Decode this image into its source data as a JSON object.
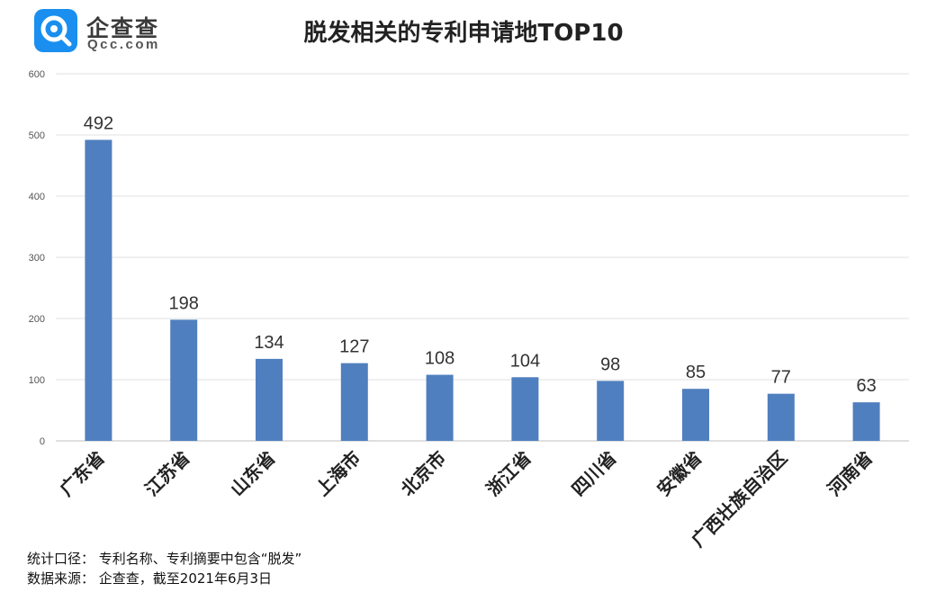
{
  "brand": {
    "name": "企查查",
    "domain": "Qcc.com",
    "color": "#1a8ff0"
  },
  "footnotes": {
    "scope": "统计口径： 专利名称、专利摘要中包含“脱发”",
    "source": "数据来源： 企查查，截至2021年6月3日"
  },
  "chart_data": {
    "type": "bar",
    "title": "脱发相关的专利申请地TOP10",
    "xlabel": "",
    "ylabel": "",
    "categories": [
      "广东省",
      "江苏省",
      "山东省",
      "上海市",
      "北京市",
      "浙江省",
      "四川省",
      "安徽省",
      "广西壮族自治区",
      "河南省"
    ],
    "values": [
      492,
      198,
      134,
      127,
      108,
      104,
      98,
      85,
      77,
      63
    ],
    "ylim": [
      0,
      600
    ],
    "yticks": [
      0,
      100,
      200,
      300,
      400,
      500,
      600
    ],
    "grid": true,
    "legend": "none",
    "bar_color": "#4f7fbe"
  }
}
